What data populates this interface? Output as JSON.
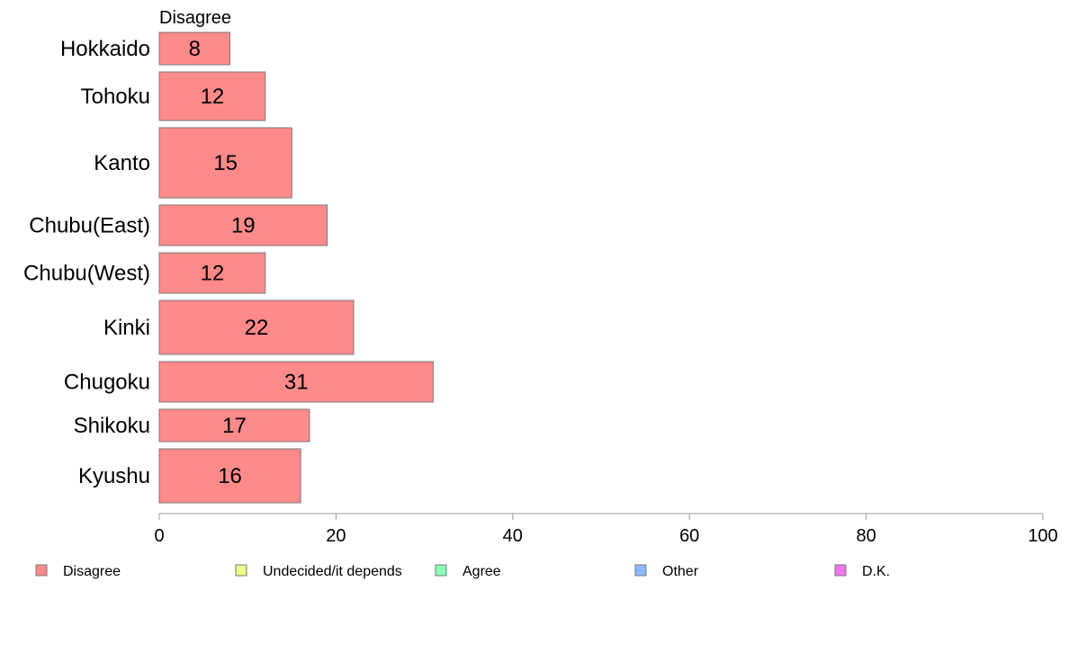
{
  "chart_data": {
    "type": "bar",
    "orientation": "horizontal",
    "stacked": true,
    "panel_label": "Disagree",
    "categories": [
      "Hokkaido",
      "Tohoku",
      "Kanto",
      "Chubu(East)",
      "Chubu(West)",
      "Kinki",
      "Chugoku",
      "Shikoku",
      "Kyushu"
    ],
    "relative_bar_widths": [
      0.6,
      0.9,
      1.3,
      0.75,
      0.75,
      1.0,
      0.75,
      0.6,
      1.0
    ],
    "series": [
      {
        "name": "Disagree",
        "color": "#ff8a8a",
        "values": [
          8,
          12,
          15,
          19,
          12,
          22,
          31,
          17,
          16
        ],
        "labels": [
          "8",
          "12",
          "15",
          "19",
          "12",
          "22",
          "31",
          "17",
          "16"
        ]
      }
    ],
    "legend": [
      {
        "name": "Disagree",
        "color": "#ff8a8a"
      },
      {
        "name": "Undecided/it depends",
        "color": "#eeff8a"
      },
      {
        "name": "Agree",
        "color": "#8affb8"
      },
      {
        "name": "Other",
        "color": "#8ab8ff"
      },
      {
        "name": "D.K.",
        "color": "#ee77ee"
      }
    ],
    "legend_position": "bottom",
    "xlim": [
      0,
      100
    ],
    "x_ticks": [
      0,
      20,
      40,
      60,
      80,
      100
    ],
    "x_tick_labels": [
      "0",
      "20",
      "40",
      "60",
      "80",
      "100"
    ],
    "grid": false,
    "bar_border_color": "#7a7a7a",
    "axis_color": "#999999"
  }
}
